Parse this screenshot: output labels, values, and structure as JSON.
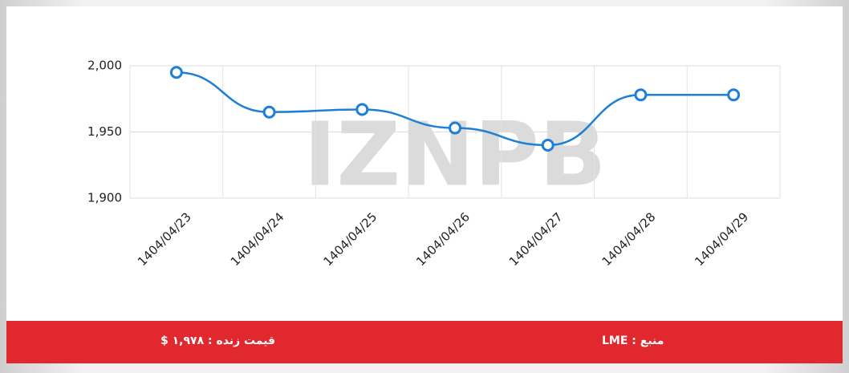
{
  "chart_data": {
    "type": "line",
    "categories": [
      "1404/04/23",
      "1404/04/24",
      "1404/04/25",
      "1404/04/26",
      "1404/04/27",
      "1404/04/28",
      "1404/04/29"
    ],
    "series": [
      {
        "color": "#1e7fd6",
        "values": [
          1995,
          1965,
          1967,
          1953,
          1940,
          1978,
          1978
        ]
      }
    ],
    "ylim": [
      1900,
      2000
    ],
    "yticks": [
      {
        "value": 1900,
        "label": "1,900"
      },
      {
        "value": 1950,
        "label": "1,950"
      },
      {
        "value": 2000,
        "label": "2,000"
      }
    ],
    "grid": true
  },
  "watermark": "IZNPB",
  "footer": {
    "price": "قیمت زنده : ۱,۹۷۸ $",
    "source": "منبع : LME"
  }
}
